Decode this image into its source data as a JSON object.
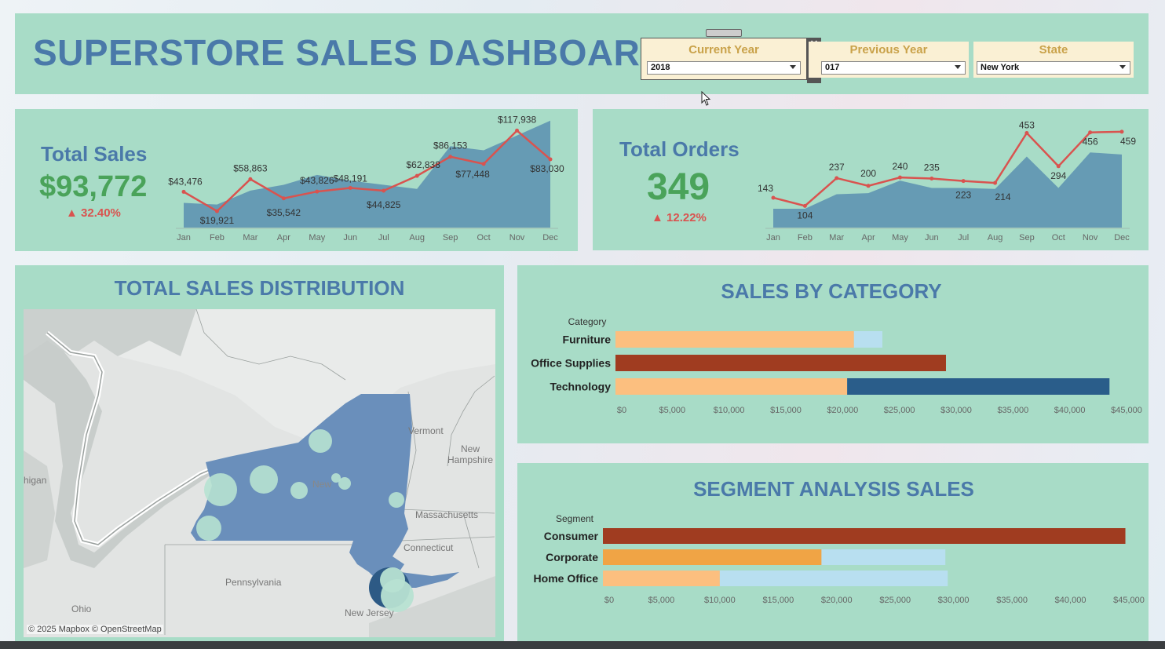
{
  "header": {
    "title": "SUPERSTORE SALES DASHBOARD",
    "filters": [
      {
        "label": "Current Year",
        "value": "2018"
      },
      {
        "label": "Previous Year",
        "value": "017"
      },
      {
        "label": "State",
        "value": "New York"
      }
    ],
    "close_glyph": "✕",
    "pin_glyph": "⌅",
    "more_glyph": "▾"
  },
  "kpis": {
    "sales": {
      "label": "Total Sales",
      "value": "$93,772",
      "delta": "▲ 32.40%"
    },
    "orders": {
      "label": "Total Orders",
      "value": "349",
      "delta": "▲ 12.22%"
    }
  },
  "sections": {
    "map_title": "TOTAL SALES DISTRIBUTION",
    "category_title": "SALES BY CATEGORY",
    "segment_title": "SEGMENT ANALYSIS SALES"
  },
  "map": {
    "labels": [
      "Vermont",
      "New",
      "Hampshire",
      "Massachusetts",
      "Connecticut",
      "Pennsylvania",
      "New Jersey",
      "Ohio",
      "higan",
      "New"
    ],
    "attribution": "© 2025 Mapbox © OpenStreetMap"
  },
  "chart_data": [
    {
      "type": "line",
      "name": "sales-trend",
      "x": [
        "Jan",
        "Feb",
        "Mar",
        "Apr",
        "May",
        "Jun",
        "Jul",
        "Aug",
        "Sep",
        "Oct",
        "Nov",
        "Dec"
      ],
      "series": [
        {
          "values": [
            43476,
            19921,
            58863,
            35542,
            43826,
            48191,
            44825,
            62838,
            86153,
            77448,
            117938,
            83030
          ],
          "labels": [
            "$43,476",
            "$19,921",
            "$58,863",
            "$35,542",
            "$43,826",
            "$48,191",
            "$44,825",
            "$62,838",
            "$86,153",
            "$77,448",
            "$117,938",
            "$83,030"
          ],
          "color": "#d9534f"
        },
        {
          "values": [
            30000,
            28000,
            45000,
            52000,
            64000,
            57000,
            52000,
            47000,
            99000,
            94000,
            112000,
            130000
          ],
          "color": "#5b8fb0"
        }
      ],
      "ylim": [
        0,
        125000
      ]
    },
    {
      "type": "line",
      "name": "orders-trend",
      "x": [
        "Jan",
        "Feb",
        "Mar",
        "Apr",
        "May",
        "Jun",
        "Jul",
        "Aug",
        "Sep",
        "Oct",
        "Nov",
        "Dec"
      ],
      "series": [
        {
          "values": [
            143,
            104,
            237,
            200,
            240,
            235,
            223,
            214,
            453,
            294,
            456,
            459
          ],
          "labels": [
            "143",
            "104",
            "237",
            "200",
            "240",
            "235",
            "223",
            "214",
            "453",
            "294",
            "456",
            "459"
          ],
          "color": "#d9534f"
        },
        {
          "values": [
            90,
            90,
            160,
            165,
            225,
            190,
            190,
            185,
            340,
            190,
            360,
            350
          ],
          "color": "#5b8fb0"
        }
      ],
      "ylim": [
        0,
        500
      ]
    },
    {
      "type": "bar",
      "name": "sales-by-category",
      "header": "Category",
      "categories": [
        "Furniture",
        "Office Supplies",
        "Technology"
      ],
      "series": [
        {
          "values": [
            21000,
            29100,
            20400
          ],
          "colors": [
            "#fcbf7f",
            "#a03c20",
            "#fcbf7f"
          ]
        },
        {
          "values": [
            2500,
            0,
            23100
          ],
          "colors": [
            "#b8dff0",
            "#b8dff0",
            "#2a5d8a"
          ]
        }
      ],
      "xlim": [
        0,
        45000
      ],
      "ticks": [
        "$0",
        "$5,000",
        "$10,000",
        "$15,000",
        "$20,000",
        "$25,000",
        "$30,000",
        "$35,000",
        "$40,000",
        "$45,000"
      ]
    },
    {
      "type": "bar",
      "name": "segment-analysis",
      "header": "Segment",
      "categories": [
        "Consumer",
        "Corporate",
        "Home Office"
      ],
      "series": [
        {
          "values": [
            44700,
            18700,
            10000
          ],
          "colors": [
            "#a03c20",
            "#f0a445",
            "#fcbf7f"
          ]
        },
        {
          "values": [
            0,
            10600,
            19500
          ],
          "colors": [
            "#b8dff0",
            "#b8dff0",
            "#b8dff0"
          ]
        }
      ],
      "xlim": [
        0,
        45000
      ],
      "ticks": [
        "$0",
        "$5,000",
        "$10,000",
        "$15,000",
        "$20,000",
        "$25,000",
        "$30,000",
        "$35,000",
        "$40,000",
        "$45,000"
      ]
    }
  ]
}
